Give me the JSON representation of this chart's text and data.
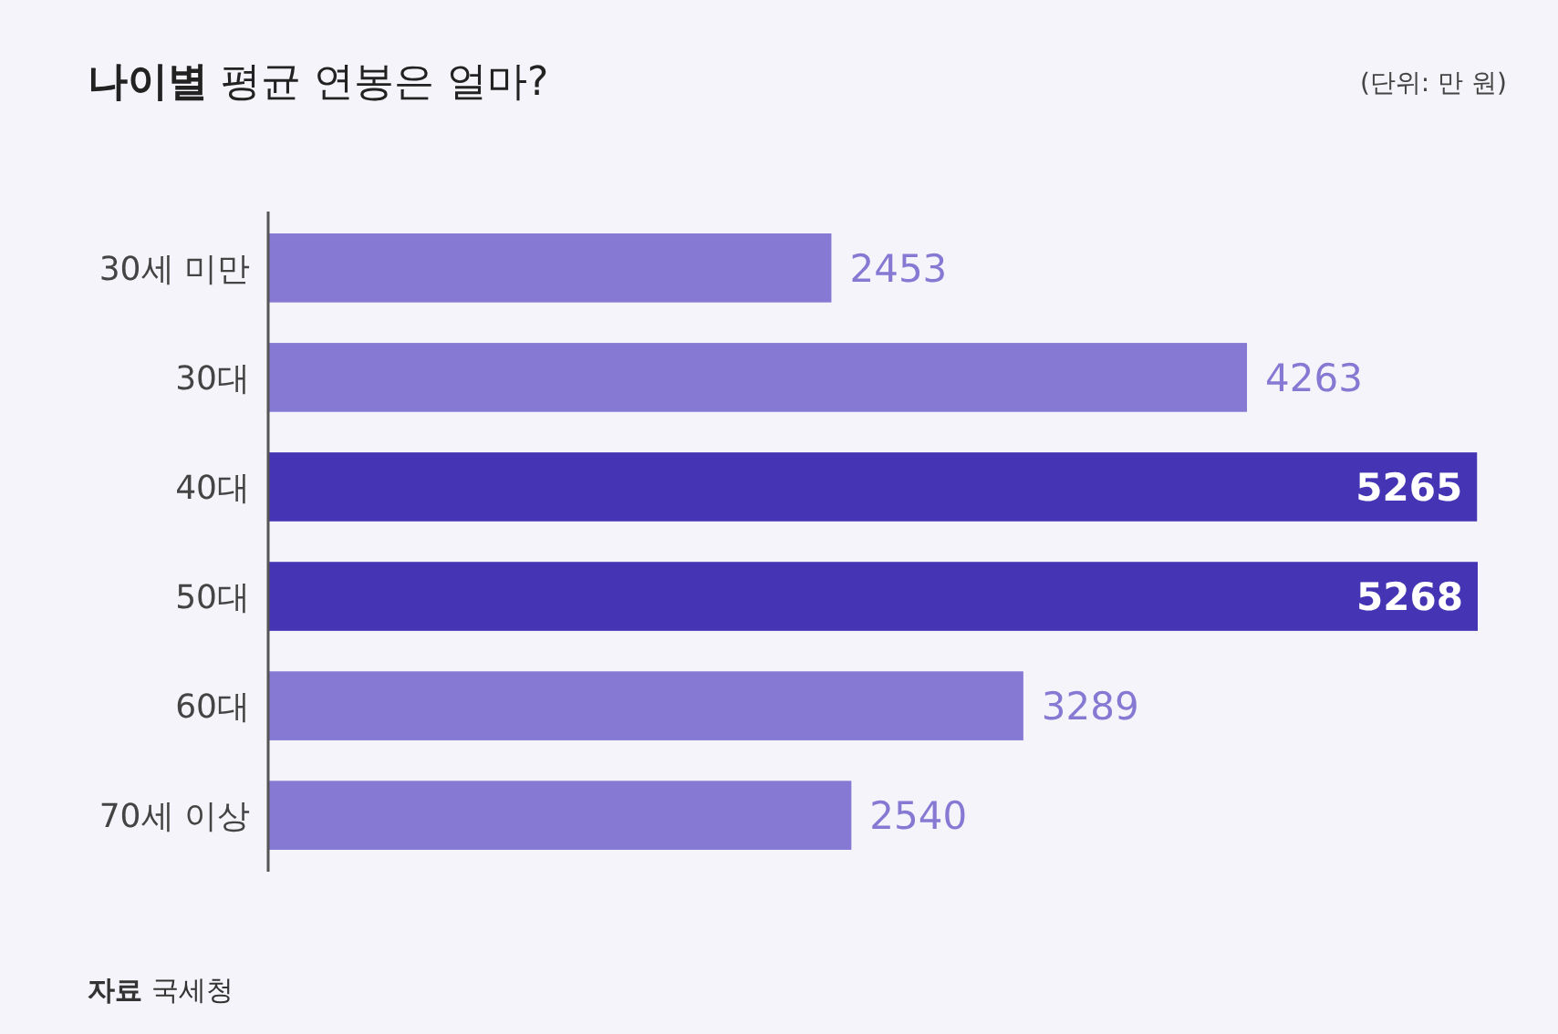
{
  "chart_data": {
    "type": "bar",
    "orientation": "horizontal",
    "title": "나이별 평균 연봉은 얼마?",
    "subtitle": "(단위: 만 원)",
    "categories": [
      "30세 미만",
      "30대",
      "40대",
      "50대",
      "60대",
      "70세 이상"
    ],
    "values": [
      2453,
      4263,
      5265,
      5268,
      3289,
      2540
    ],
    "colors": [
      "#8679d3",
      "#8679d3",
      "#4535b5",
      "#4535b5",
      "#8679d3",
      "#8679d3"
    ],
    "data_labels": true,
    "annotations": [
      "자료 국세청"
    ]
  }
}
